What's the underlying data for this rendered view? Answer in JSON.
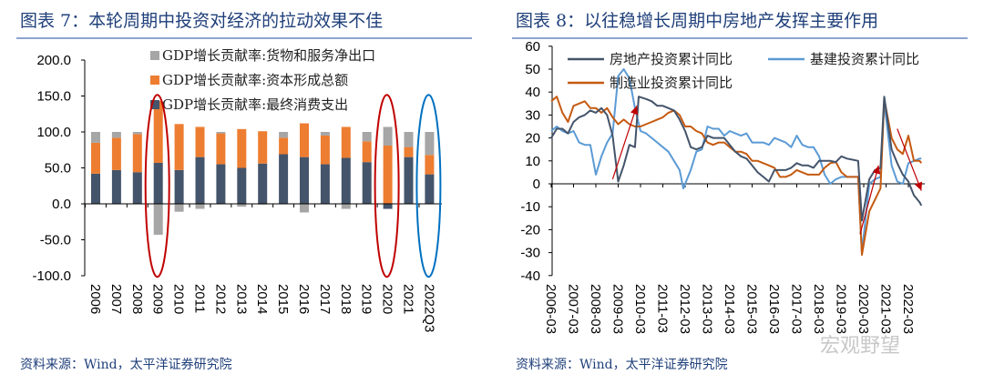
{
  "left": {
    "title": "图表 7：本轮周期中投资对经济的拉动效果不佳",
    "source": "资料来源：Wind，太平洋证券研究院"
  },
  "right": {
    "title": "图表 8：以往稳增长周期中房地产发挥主要作用",
    "source": "资料来源：Wind，太平洋证券研究院",
    "watermark": "宏观野望"
  },
  "chart_data": [
    {
      "type": "bar",
      "stacked": true,
      "categories": [
        "2006",
        "2007",
        "2008",
        "2009",
        "2010",
        "2011",
        "2012",
        "2013",
        "2014",
        "2015",
        "2016",
        "2017",
        "2018",
        "2019",
        "2020",
        "2021",
        "2022Q3"
      ],
      "ylim": [
        -100,
        200
      ],
      "yticks": [
        "200.0",
        "150.0",
        "100.0",
        "50.0",
        "0.0",
        "-50.0",
        "-100.0"
      ],
      "legend_position": "top",
      "series": [
        {
          "name": "GDP增长贡献率:货物和服务净出口",
          "color": "#a6a6a6",
          "values": [
            15,
            8,
            3,
            -43,
            -11,
            -7,
            2,
            -4,
            -1,
            8,
            -12,
            5,
            -7,
            13,
            26,
            21,
            32
          ]
        },
        {
          "name": "GDP增长贡献率:资本形成总额",
          "color": "#ed7d31",
          "values": [
            43,
            45,
            53,
            86,
            64,
            42,
            43,
            54,
            45,
            23,
            47,
            40,
            43,
            29,
            81,
            14,
            27
          ]
        },
        {
          "name": "GDP增长贡献率:最终消费支出",
          "color": "#44546a",
          "values": [
            42,
            47,
            44,
            57,
            47,
            65,
            55,
            50,
            56,
            69,
            65,
            55,
            64,
            58,
            -7,
            65,
            41
          ]
        }
      ],
      "highlights": [
        {
          "category": "2009",
          "color": "#c00000"
        },
        {
          "category": "2020",
          "color": "#c00000"
        },
        {
          "category": "2022Q3",
          "color": "#0070c0"
        }
      ]
    },
    {
      "type": "line",
      "ylim": [
        -40,
        60
      ],
      "yticks": [
        "60",
        "50",
        "40",
        "30",
        "20",
        "10",
        "0",
        "-10",
        "-20",
        "-30",
        "-40"
      ],
      "xticks": [
        "2006-03",
        "2007-03",
        "2008-03",
        "2009-03",
        "2010-03",
        "2011-03",
        "2012-03",
        "2013-03",
        "2014-03",
        "2015-03",
        "2016-03",
        "2017-03",
        "2018-03",
        "2019-03",
        "2020-03",
        "2021-03",
        "2022-03"
      ],
      "legend_position": "top",
      "series": [
        {
          "name": "房地产投资累计同比",
          "color": "#44546a",
          "x": [
            "2006-03",
            "2006-06",
            "2006-09",
            "2006-12",
            "2007-03",
            "2007-06",
            "2007-09",
            "2007-12",
            "2008-03",
            "2008-06",
            "2008-09",
            "2008-12",
            "2009-03",
            "2009-06",
            "2009-09",
            "2009-12",
            "2010-02",
            "2010-06",
            "2010-09",
            "2010-12",
            "2011-03",
            "2011-06",
            "2011-09",
            "2011-12",
            "2012-03",
            "2012-06",
            "2012-09",
            "2012-12",
            "2013-03",
            "2013-06",
            "2013-09",
            "2013-12",
            "2014-03",
            "2014-06",
            "2014-09",
            "2014-12",
            "2015-03",
            "2015-06",
            "2015-09",
            "2015-12",
            "2016-03",
            "2016-06",
            "2016-09",
            "2016-12",
            "2017-03",
            "2017-06",
            "2017-09",
            "2017-12",
            "2018-03",
            "2018-06",
            "2018-09",
            "2018-12",
            "2019-03",
            "2019-06",
            "2019-09",
            "2019-12",
            "2020-02",
            "2020-06",
            "2020-09",
            "2020-12",
            "2021-02",
            "2021-06",
            "2021-09",
            "2021-12",
            "2022-03",
            "2022-06",
            "2022-09",
            "2022-10"
          ],
          "y": [
            20,
            24,
            24,
            22,
            27,
            29,
            30,
            32,
            31,
            33,
            30,
            21,
            1,
            8,
            17,
            16,
            38,
            37,
            36,
            34,
            34,
            33,
            32,
            28,
            23,
            16,
            15,
            16,
            21,
            20,
            20,
            20,
            17,
            14,
            12,
            11,
            8,
            5,
            3,
            1,
            6,
            6,
            6,
            7,
            9,
            8,
            8,
            7,
            10,
            10,
            10,
            9.5,
            12,
            11,
            10.5,
            10,
            -16,
            2,
            6,
            7,
            38,
            15,
            9,
            4,
            1,
            -5,
            -8,
            -9.5
          ]
        },
        {
          "name": "基建投资累计同比",
          "color": "#5b9bd5",
          "x": [
            "2006-03",
            "2006-06",
            "2006-09",
            "2006-12",
            "2007-03",
            "2007-06",
            "2007-09",
            "2007-12",
            "2008-03",
            "2008-06",
            "2008-09",
            "2008-12",
            "2009-03",
            "2009-06",
            "2009-09",
            "2009-12",
            "2010-03",
            "2010-06",
            "2010-09",
            "2010-12",
            "2011-03",
            "2011-06",
            "2011-09",
            "2011-12",
            "2012-02",
            "2012-06",
            "2012-09",
            "2012-12",
            "2013-03",
            "2013-06",
            "2013-09",
            "2013-12",
            "2014-03",
            "2014-06",
            "2014-09",
            "2014-12",
            "2015-03",
            "2015-06",
            "2015-09",
            "2015-12",
            "2016-03",
            "2016-06",
            "2016-09",
            "2016-12",
            "2017-03",
            "2017-06",
            "2017-09",
            "2017-12",
            "2018-03",
            "2018-06",
            "2018-09",
            "2018-12",
            "2019-03",
            "2019-06",
            "2019-09",
            "2019-12",
            "2020-02",
            "2020-06",
            "2020-09",
            "2020-12",
            "2021-02",
            "2021-06",
            "2021-09",
            "2021-12",
            "2022-03",
            "2022-06",
            "2022-09",
            "2022-10"
          ],
          "y": [
            23,
            25,
            23,
            22,
            23,
            18,
            17,
            17,
            4,
            12,
            18,
            22,
            47,
            50,
            46,
            33,
            23,
            22,
            20,
            18,
            16,
            14,
            10,
            6,
            -2,
            6,
            14,
            15,
            25,
            24,
            24,
            21,
            23,
            22,
            21,
            22,
            18,
            18,
            18,
            17,
            20,
            19,
            18,
            16,
            21,
            17,
            16,
            16,
            12,
            4,
            0,
            2,
            3,
            3,
            3,
            3,
            -30,
            0,
            2,
            3,
            36,
            8,
            1,
            0,
            9,
            10,
            11,
            11
          ]
        },
        {
          "name": "制造业投资累计同比",
          "color": "#c55a11",
          "x": [
            "2006-03",
            "2006-06",
            "2006-09",
            "2006-12",
            "2007-03",
            "2007-06",
            "2007-09",
            "2007-12",
            "2008-03",
            "2008-06",
            "2008-09",
            "2008-12",
            "2009-03",
            "2009-06",
            "2009-09",
            "2009-12",
            "2010-03",
            "2010-06",
            "2010-09",
            "2010-12",
            "2011-03",
            "2011-06",
            "2011-09",
            "2011-12",
            "2012-03",
            "2012-06",
            "2012-09",
            "2012-12",
            "2013-03",
            "2013-06",
            "2013-09",
            "2013-12",
            "2014-03",
            "2014-06",
            "2014-09",
            "2014-12",
            "2015-03",
            "2015-06",
            "2015-09",
            "2015-12",
            "2016-03",
            "2016-06",
            "2016-09",
            "2016-12",
            "2017-03",
            "2017-06",
            "2017-09",
            "2017-12",
            "2018-03",
            "2018-06",
            "2018-09",
            "2018-12",
            "2019-03",
            "2019-06",
            "2019-09",
            "2019-12",
            "2020-02",
            "2020-06",
            "2020-09",
            "2020-12",
            "2021-02",
            "2021-06",
            "2021-09",
            "2021-12",
            "2022-03",
            "2022-06",
            "2022-09",
            "2022-10"
          ],
          "y": [
            36,
            38,
            31,
            27,
            34,
            35,
            36,
            33,
            33,
            31,
            33,
            29,
            26,
            28,
            26,
            25,
            25,
            26,
            27,
            28,
            29,
            31,
            32,
            30,
            25,
            25,
            23,
            22,
            18,
            17,
            18,
            18,
            16,
            14,
            14,
            13,
            10,
            10,
            9,
            8,
            7,
            3,
            3,
            4,
            6,
            5,
            4,
            4,
            4,
            7,
            9,
            9.5,
            5,
            3,
            3,
            3,
            -31,
            -12,
            -7,
            -2,
            37,
            20,
            15,
            13,
            21,
            10,
            10,
            9
          ]
        }
      ],
      "annotations": [
        {
          "type": "arrow",
          "color": "#c00000",
          "from": [
            "2008-12",
            2
          ],
          "to": [
            "2010-01",
            34
          ]
        },
        {
          "type": "arrow",
          "color": "#c00000",
          "from": [
            "2020-01",
            -22
          ],
          "to": [
            "2020-11",
            8
          ]
        },
        {
          "type": "arrow",
          "color": "#c00000",
          "from": [
            "2021-09",
            24
          ],
          "to": [
            "2022-10",
            -3
          ]
        }
      ]
    }
  ]
}
